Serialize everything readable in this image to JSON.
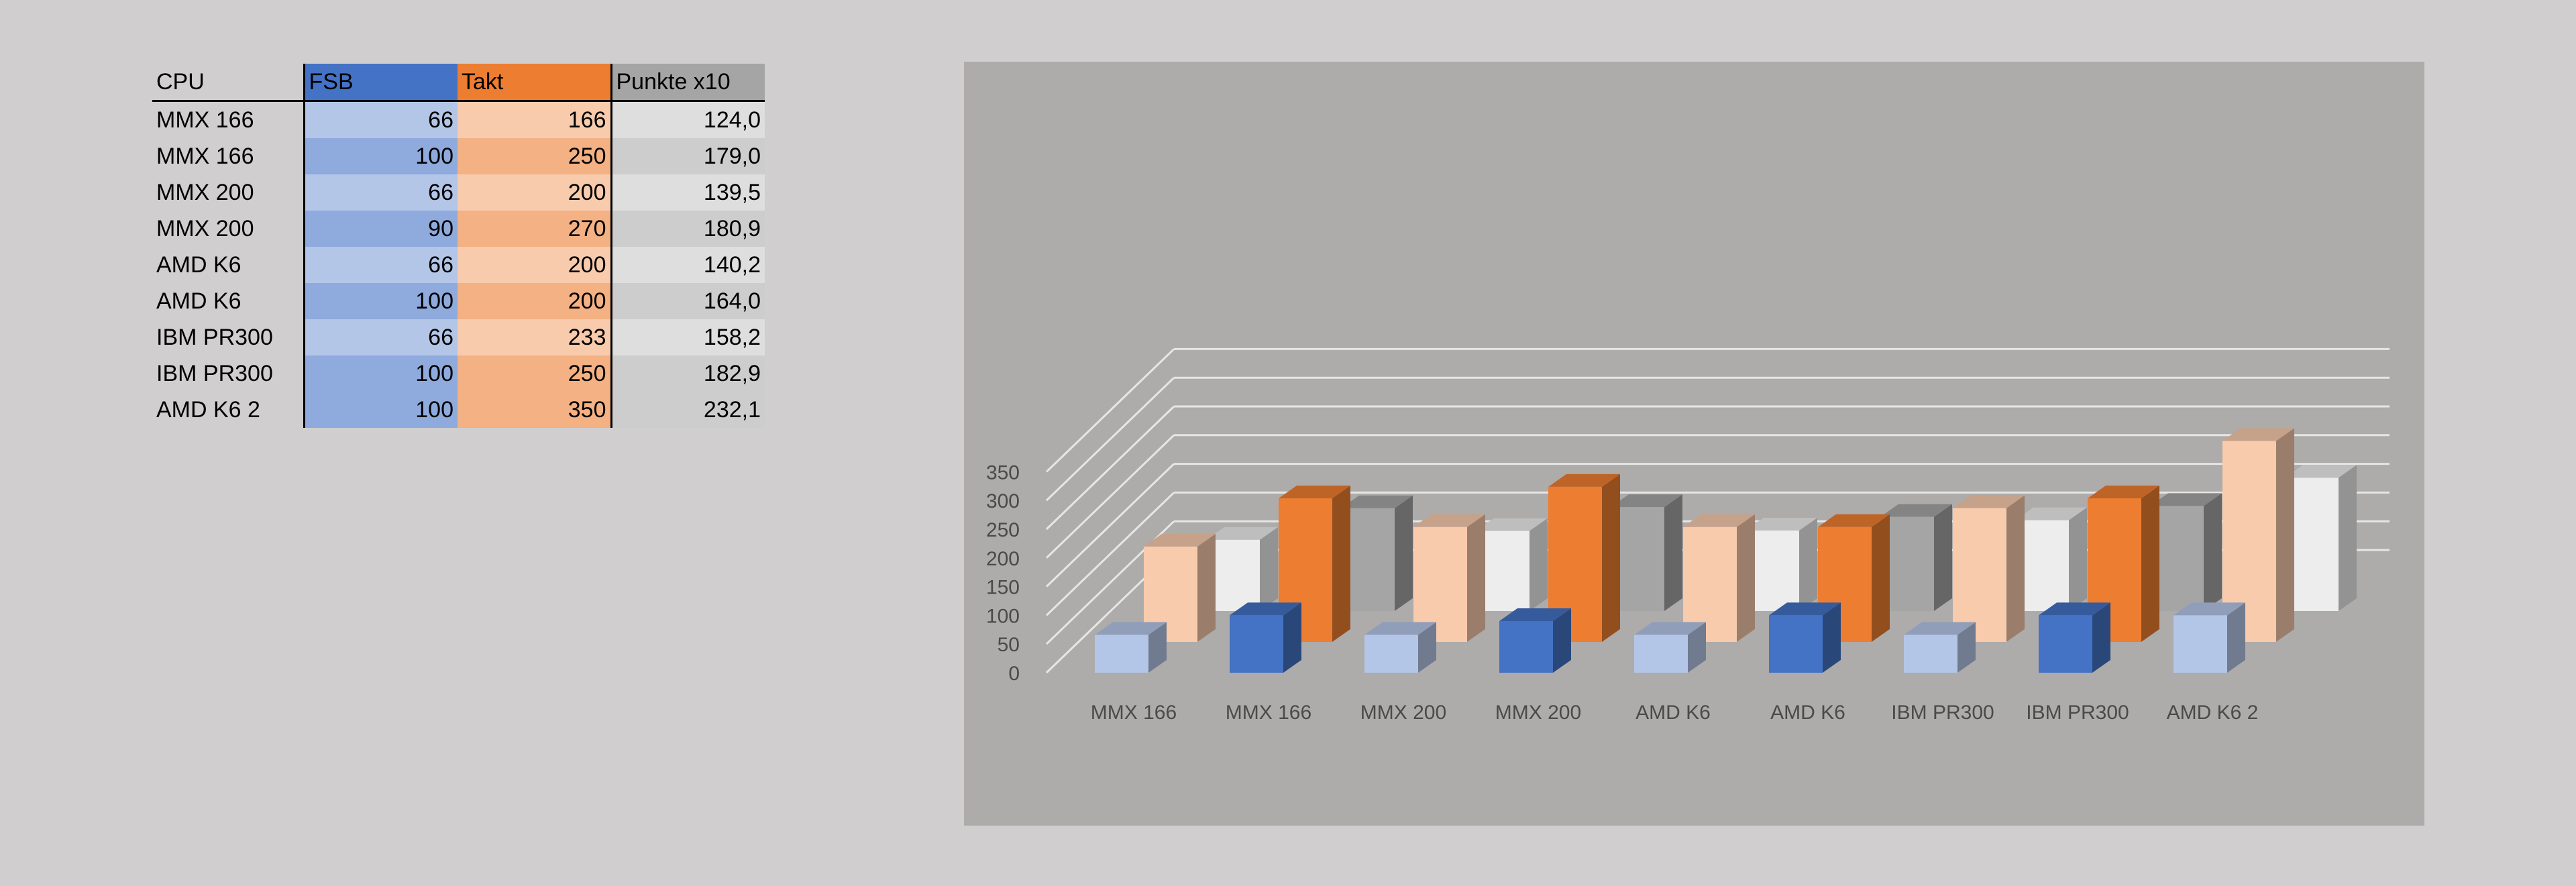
{
  "table": {
    "headers": {
      "cpu": "CPU",
      "fsb": "FSB",
      "takt": "Takt",
      "punkte": "Punkte x10"
    },
    "rows": [
      {
        "cpu": "MMX 166",
        "fsb": "66",
        "takt": "166",
        "punkte": "124,0"
      },
      {
        "cpu": "MMX 166",
        "fsb": "100",
        "takt": "250",
        "punkte": "179,0"
      },
      {
        "cpu": "MMX 200",
        "fsb": "66",
        "takt": "200",
        "punkte": "139,5"
      },
      {
        "cpu": "MMX 200",
        "fsb": "90",
        "takt": "270",
        "punkte": "180,9"
      },
      {
        "cpu": "AMD K6",
        "fsb": "66",
        "takt": "200",
        "punkte": "140,2"
      },
      {
        "cpu": "AMD K6",
        "fsb": "100",
        "takt": "200",
        "punkte": "164,0"
      },
      {
        "cpu": "IBM PR300",
        "fsb": "66",
        "takt": "233",
        "punkte": "158,2"
      },
      {
        "cpu": "IBM PR300",
        "fsb": "100",
        "takt": "250",
        "punkte": "182,9"
      },
      {
        "cpu": "AMD K6 2",
        "fsb": "100",
        "takt": "350",
        "punkte": "232,1"
      }
    ]
  },
  "chart_data": {
    "type": "bar",
    "subtype": "3d-column",
    "categories": [
      "MMX 166",
      "MMX 166",
      "MMX 200",
      "MMX 200",
      "AMD K6",
      "AMD K6",
      "IBM PR300",
      "IBM PR300",
      "AMD K6 2"
    ],
    "series": [
      {
        "name": "FSB",
        "values": [
          66,
          100,
          66,
          90,
          66,
          100,
          66,
          100,
          100
        ],
        "colors": [
          "#b4c6e7",
          "#4472c4"
        ]
      },
      {
        "name": "Takt",
        "values": [
          166,
          250,
          200,
          270,
          200,
          200,
          233,
          250,
          350
        ],
        "colors": [
          "#f8cbad",
          "#ed7d31"
        ]
      },
      {
        "name": "Punkte x10",
        "values": [
          124.0,
          179.0,
          139.5,
          180.9,
          140.2,
          164.0,
          158.2,
          182.9,
          232.1
        ],
        "colors": [
          "#ededed",
          "#a5a5a5"
        ]
      }
    ],
    "yticks": [
      0,
      50,
      100,
      150,
      200,
      250,
      300,
      350
    ],
    "ylim": [
      0,
      350
    ],
    "grid": true,
    "legend": "none",
    "colors": {
      "plot_background": "#aeabab",
      "gridline": "#e6e6e6",
      "axis_text": "#4a4a4a"
    }
  }
}
